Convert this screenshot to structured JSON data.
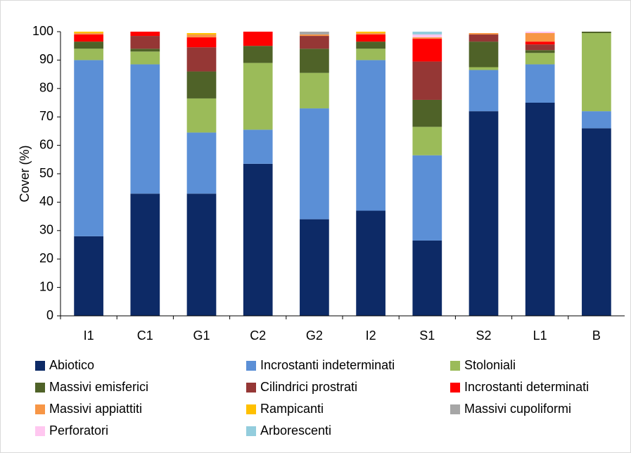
{
  "chart_data": {
    "type": "stacked-bar",
    "y_label": "Cover (%)",
    "categories": [
      "I1",
      "C1",
      "G1",
      "C2",
      "G2",
      "I2",
      "S1",
      "S2",
      "L1",
      "B"
    ],
    "ylim": [
      0,
      100
    ],
    "yticks": [
      0,
      10,
      20,
      30,
      40,
      50,
      60,
      70,
      80,
      90,
      100
    ],
    "series": [
      {
        "name": "Abiotico",
        "color": "#0d2a66",
        "values": [
          28,
          43,
          43,
          53.5,
          34,
          37,
          26.5,
          72,
          75,
          66
        ]
      },
      {
        "name": "Incrostanti indeterminati",
        "color": "#5b8fd6",
        "values": [
          62,
          45.5,
          21.5,
          12,
          39,
          53,
          30,
          14.5,
          13.5,
          6
        ]
      },
      {
        "name": "Stoloniali",
        "color": "#9bbb59",
        "values": [
          4,
          4.5,
          12,
          23.5,
          12.5,
          4,
          10,
          1,
          4,
          27.5
        ]
      },
      {
        "name": "Massivi emisferici",
        "color": "#4f6228",
        "values": [
          2.5,
          1,
          9.5,
          6,
          8.5,
          2.5,
          9.5,
          9,
          1,
          0.5
        ]
      },
      {
        "name": "Cilindrici prostrati",
        "color": "#953735",
        "values": [
          0,
          4.5,
          8.5,
          0,
          4.5,
          0,
          13.5,
          2.5,
          2,
          0
        ]
      },
      {
        "name": "Incrostanti determinati",
        "color": "#ff0000",
        "values": [
          2.5,
          1.5,
          3.5,
          5,
          0,
          2.5,
          8,
          0,
          1,
          0
        ]
      },
      {
        "name": "Massivi appiattiti",
        "color": "#f79646",
        "values": [
          0.5,
          0,
          1,
          0,
          0.5,
          0.5,
          0.5,
          0.5,
          3,
          0
        ]
      },
      {
        "name": "Rampicanti",
        "color": "#ffc000",
        "values": [
          0.5,
          0,
          0.5,
          0,
          0,
          0.5,
          0,
          0,
          0,
          0
        ]
      },
      {
        "name": "Massivi cupoliformi",
        "color": "#a6a6a6",
        "values": [
          0,
          0,
          0,
          0,
          1,
          0,
          0,
          0,
          0,
          0
        ]
      },
      {
        "name": "Perforatori",
        "color": "#ffc7f0",
        "values": [
          0,
          0,
          0,
          0,
          0,
          0,
          1,
          0,
          0.5,
          0
        ]
      },
      {
        "name": "Arborescenti",
        "color": "#93cddd",
        "values": [
          0,
          0,
          0,
          0,
          0,
          0,
          1,
          0,
          0,
          0
        ]
      }
    ]
  }
}
